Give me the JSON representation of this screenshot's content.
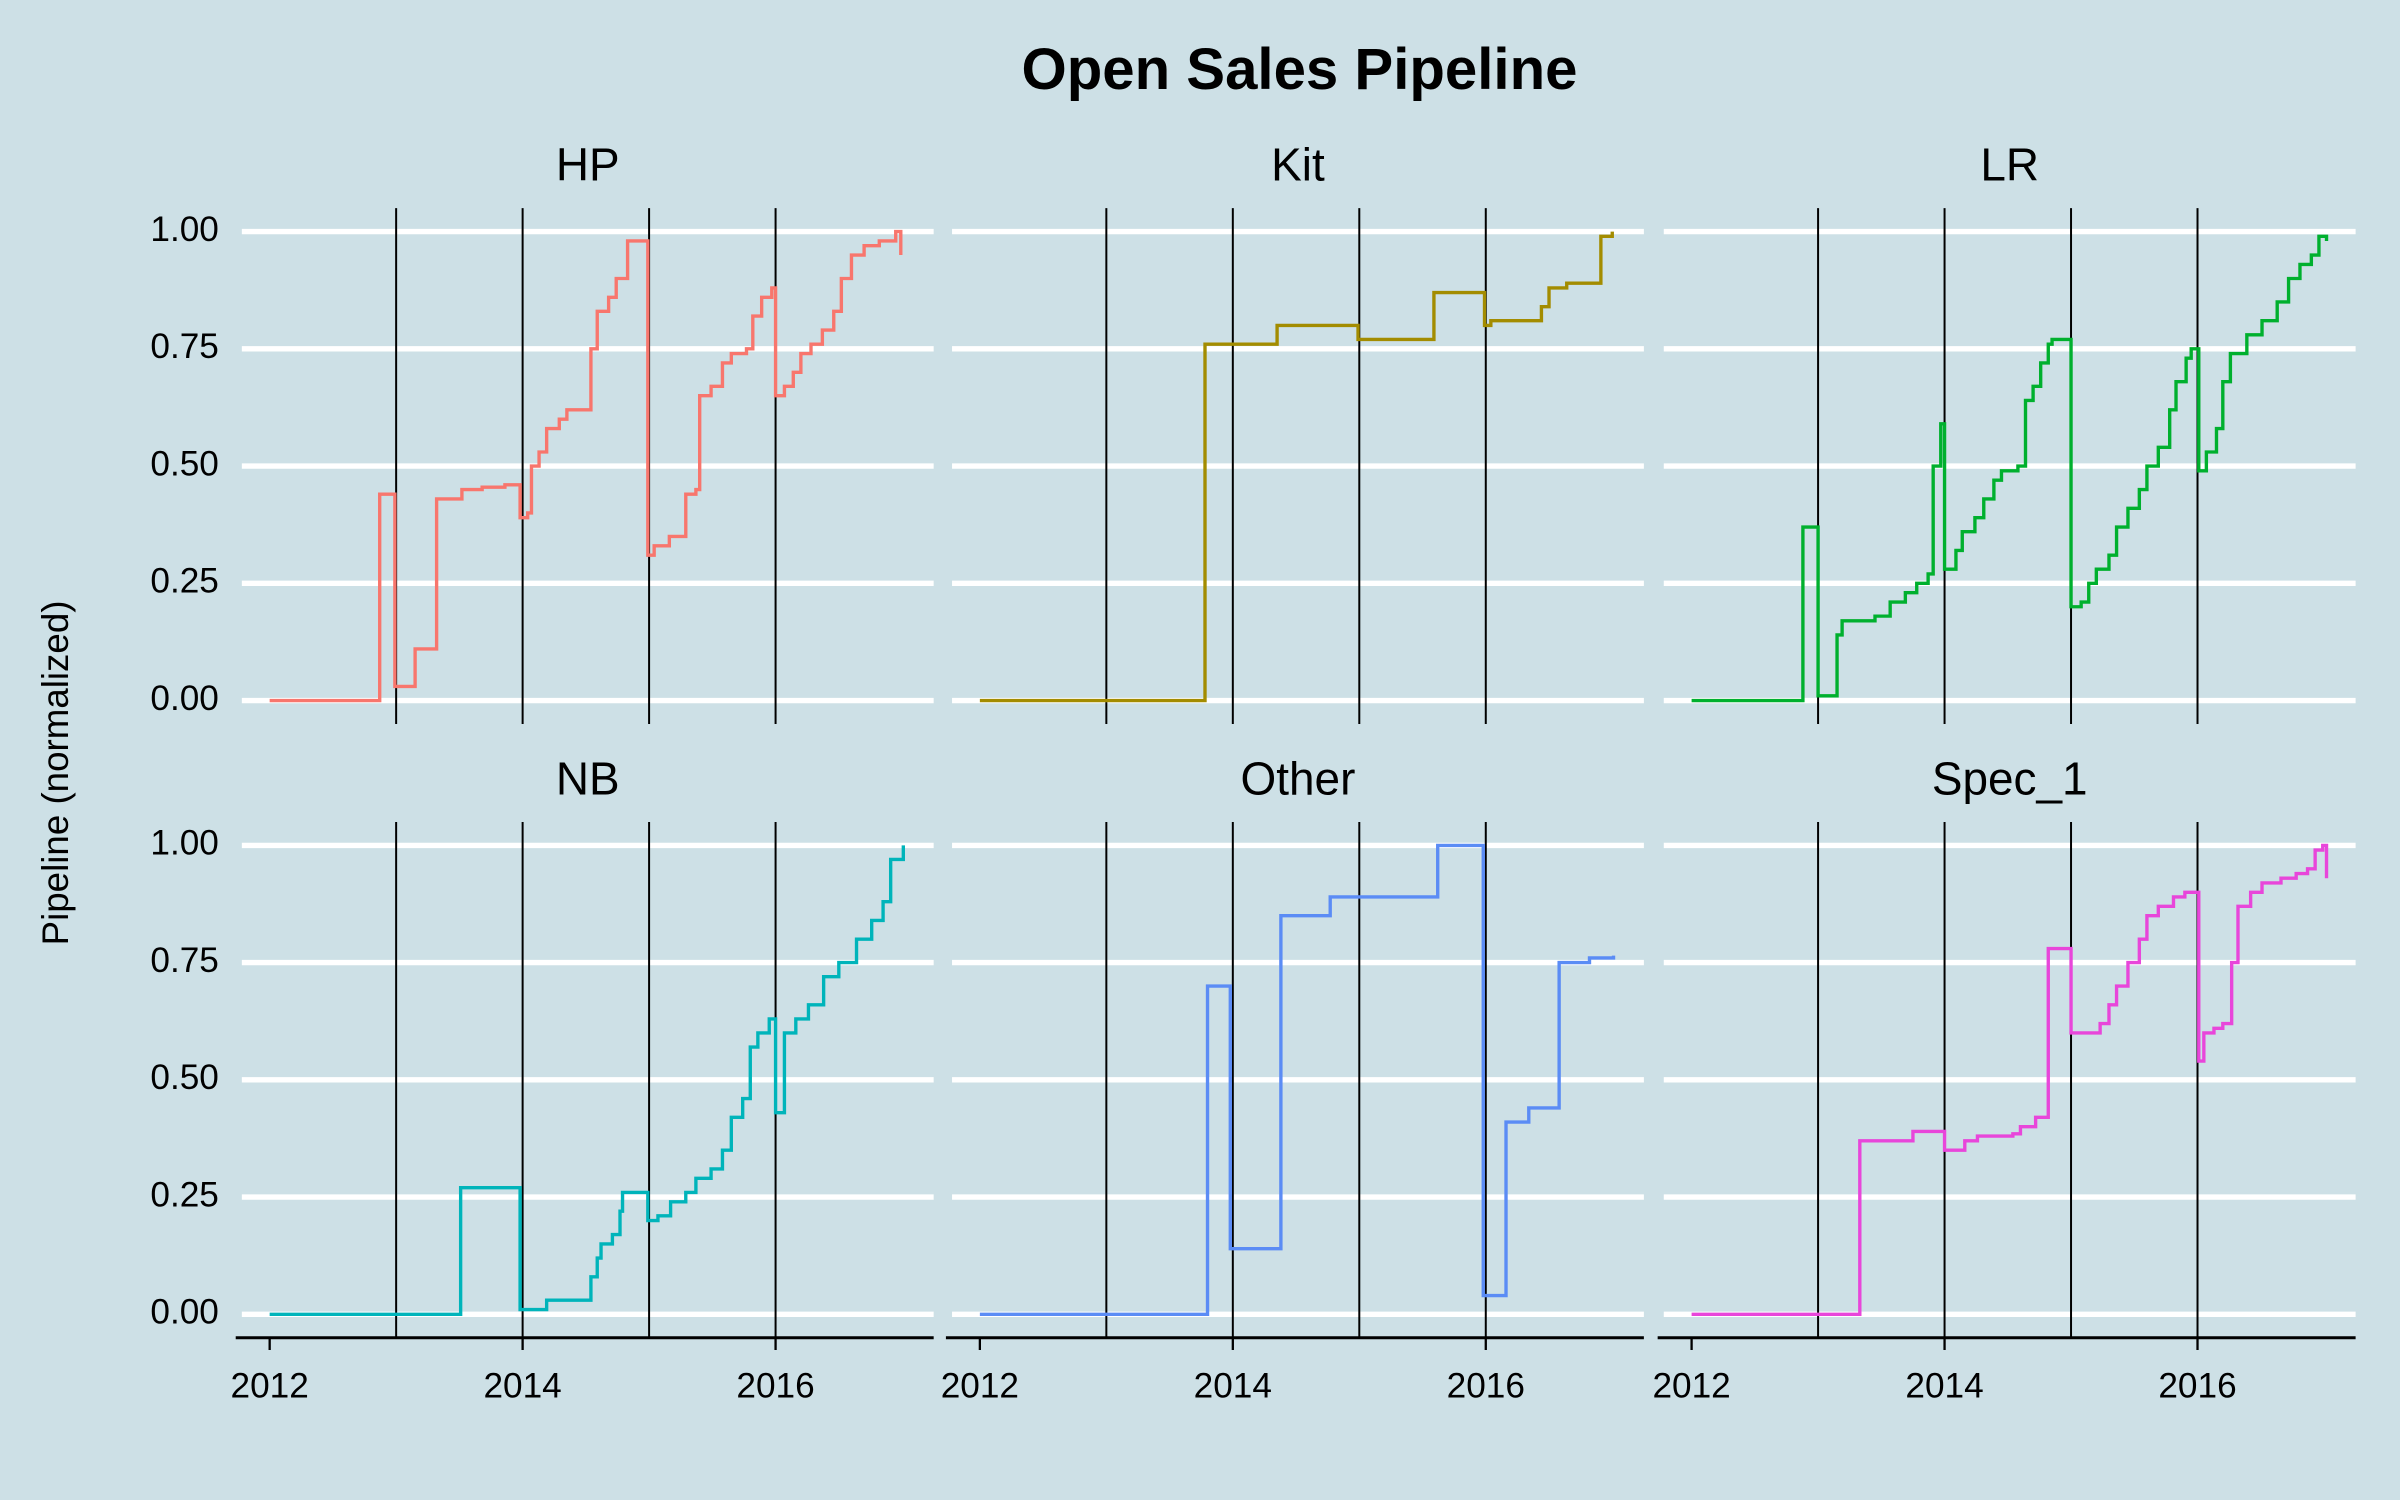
{
  "title": "Open Sales Pipeline",
  "y_label": "Pipeline (normalized)",
  "chart_data": [
    {
      "type": "line",
      "title": "HP",
      "color": "#F8766D",
      "xlim": [
        2011.78,
        2017.25
      ],
      "ylim": [
        -0.05,
        1.05
      ],
      "yticks": [
        {
          "value": 0,
          "label": "0.00"
        },
        {
          "value": 0.25,
          "label": "0.25"
        },
        {
          "value": 0.5,
          "label": "0.50"
        },
        {
          "value": 0.75,
          "label": "0.75"
        },
        {
          "value": 1,
          "label": "1.00"
        }
      ],
      "vlines": [
        2013,
        2014,
        2015,
        2016
      ],
      "x": [
        2012.0,
        2012.87,
        2012.99,
        2013.15,
        2013.32,
        2013.52,
        2013.68,
        2013.86,
        2013.98,
        2014.04,
        2014.07,
        2014.13,
        2014.19,
        2014.29,
        2014.35,
        2014.54,
        2014.59,
        2014.68,
        2014.74,
        2014.83,
        2014.99,
        2015.04,
        2015.16,
        2015.29,
        2015.37,
        2015.4,
        2015.49,
        2015.58,
        2015.65,
        2015.77,
        2015.82,
        2015.89,
        2015.97,
        2016.0,
        2016.07,
        2016.14,
        2016.2,
        2016.28,
        2016.37,
        2016.46,
        2016.52,
        2016.6,
        2016.7,
        2016.82,
        2016.95,
        2016.99
      ],
      "values": [
        0,
        0.44,
        0.03,
        0.11,
        0.43,
        0.45,
        0.455,
        0.46,
        0.39,
        0.4,
        0.5,
        0.53,
        0.58,
        0.6,
        0.62,
        0.75,
        0.83,
        0.86,
        0.9,
        0.98,
        0.31,
        0.33,
        0.35,
        0.44,
        0.45,
        0.65,
        0.67,
        0.72,
        0.74,
        0.75,
        0.82,
        0.86,
        0.88,
        0.65,
        0.67,
        0.7,
        0.74,
        0.76,
        0.79,
        0.83,
        0.9,
        0.95,
        0.97,
        0.98,
        1.0,
        0.95
      ]
    },
    {
      "type": "line",
      "title": "Kit",
      "color": "#A38C00",
      "xlim": [
        2011.78,
        2017.25
      ],
      "ylim": [
        -0.05,
        1.05
      ],
      "yticks": [
        0,
        0.25,
        0.5,
        0.75,
        1
      ],
      "vlines": [
        2013,
        2014,
        2015,
        2016
      ],
      "x": [
        2012.0,
        2013.78,
        2014.35,
        2014.99,
        2015.59,
        2015.99,
        2016.04,
        2016.44,
        2016.5,
        2016.64,
        2016.91,
        2017.0
      ],
      "values": [
        0,
        0.76,
        0.8,
        0.77,
        0.87,
        0.8,
        0.81,
        0.84,
        0.88,
        0.89,
        0.99,
        1.0
      ]
    },
    {
      "type": "line",
      "title": "LR",
      "color": "#00B02E",
      "xlim": [
        2011.78,
        2017.25
      ],
      "ylim": [
        -0.05,
        1.05
      ],
      "yticks": [
        0,
        0.25,
        0.5,
        0.75,
        1
      ],
      "vlines": [
        2013,
        2014,
        2015,
        2016
      ],
      "x": [
        2012.0,
        2012.88,
        2013.0,
        2013.15,
        2013.19,
        2013.45,
        2013.57,
        2013.69,
        2013.78,
        2013.87,
        2013.91,
        2013.97,
        2014.0,
        2014.09,
        2014.14,
        2014.24,
        2014.31,
        2014.39,
        2014.45,
        2014.58,
        2014.64,
        2014.7,
        2014.76,
        2014.82,
        2014.85,
        2015.0,
        2015.08,
        2015.14,
        2015.2,
        2015.3,
        2015.36,
        2015.45,
        2015.54,
        2015.6,
        2015.69,
        2015.78,
        2015.83,
        2015.91,
        2015.95,
        2016.01,
        2016.07,
        2016.15,
        2016.2,
        2016.26,
        2016.39,
        2016.51,
        2016.63,
        2016.72,
        2016.81,
        2016.9,
        2016.96,
        2017.02
      ],
      "values": [
        0,
        0.37,
        0.01,
        0.14,
        0.17,
        0.18,
        0.21,
        0.23,
        0.25,
        0.27,
        0.5,
        0.59,
        0.28,
        0.32,
        0.36,
        0.39,
        0.43,
        0.47,
        0.49,
        0.5,
        0.64,
        0.67,
        0.72,
        0.76,
        0.77,
        0.2,
        0.21,
        0.25,
        0.28,
        0.31,
        0.37,
        0.41,
        0.45,
        0.5,
        0.54,
        0.62,
        0.68,
        0.73,
        0.75,
        0.49,
        0.53,
        0.58,
        0.68,
        0.74,
        0.78,
        0.81,
        0.85,
        0.9,
        0.93,
        0.95,
        0.99,
        0.98
      ]
    },
    {
      "type": "line",
      "title": "NB",
      "color": "#00B4BA",
      "xlim": [
        2011.78,
        2017.25
      ],
      "ylim": [
        -0.05,
        1.05
      ],
      "yticks": [
        {
          "value": 0,
          "label": "0.00"
        },
        {
          "value": 0.25,
          "label": "0.25"
        },
        {
          "value": 0.5,
          "label": "0.50"
        },
        {
          "value": 0.75,
          "label": "0.75"
        },
        {
          "value": 1,
          "label": "1.00"
        }
      ],
      "xticks": [
        2012,
        2014,
        2016
      ],
      "vlines": [
        2013,
        2014,
        2015,
        2016
      ],
      "x": [
        2012.0,
        2013.51,
        2013.98,
        2014.19,
        2014.54,
        2014.59,
        2014.62,
        2014.71,
        2014.77,
        2014.79,
        2014.99,
        2015.07,
        2015.17,
        2015.29,
        2015.37,
        2015.49,
        2015.58,
        2015.65,
        2015.74,
        2015.8,
        2015.86,
        2015.95,
        2016.0,
        2016.07,
        2016.16,
        2016.26,
        2016.38,
        2016.5,
        2016.64,
        2016.76,
        2016.85,
        2016.91,
        2017.01
      ],
      "values": [
        0,
        0.27,
        0.01,
        0.03,
        0.08,
        0.12,
        0.15,
        0.17,
        0.22,
        0.26,
        0.2,
        0.21,
        0.24,
        0.26,
        0.29,
        0.31,
        0.35,
        0.42,
        0.46,
        0.57,
        0.6,
        0.63,
        0.43,
        0.6,
        0.63,
        0.66,
        0.72,
        0.75,
        0.8,
        0.84,
        0.88,
        0.97,
        1.0
      ]
    },
    {
      "type": "line",
      "title": "Other",
      "color": "#5B8CF5",
      "xlim": [
        2011.78,
        2017.25
      ],
      "ylim": [
        -0.05,
        1.05
      ],
      "yticks": [
        0,
        0.25,
        0.5,
        0.75,
        1
      ],
      "xticks": [
        2012,
        2014,
        2016
      ],
      "vlines": [
        2013,
        2014,
        2015,
        2016
      ],
      "x": [
        2012.0,
        2013.8,
        2013.98,
        2014.38,
        2014.77,
        2015.62,
        2015.98,
        2016.16,
        2016.34,
        2016.58,
        2016.82,
        2017.01
      ],
      "values": [
        0,
        0.7,
        0.14,
        0.85,
        0.89,
        1.0,
        0.04,
        0.41,
        0.44,
        0.75,
        0.76,
        0.765
      ]
    },
    {
      "type": "line",
      "title": "Spec_1",
      "color": "#E846DA",
      "xlim": [
        2011.78,
        2017.25
      ],
      "ylim": [
        -0.05,
        1.05
      ],
      "yticks": [
        0,
        0.25,
        0.5,
        0.75,
        1
      ],
      "xticks": [
        2012,
        2014,
        2016
      ],
      "vlines": [
        2013,
        2014,
        2015,
        2016
      ],
      "x": [
        2012.0,
        2013.33,
        2013.75,
        2014.0,
        2014.16,
        2014.26,
        2014.54,
        2014.6,
        2014.72,
        2014.82,
        2015.0,
        2015.23,
        2015.3,
        2015.36,
        2015.45,
        2015.54,
        2015.6,
        2015.69,
        2015.81,
        2015.9,
        2016.01,
        2016.05,
        2016.13,
        2016.2,
        2016.27,
        2016.32,
        2016.42,
        2016.51,
        2016.66,
        2016.78,
        2016.87,
        2016.93,
        2016.99,
        2017.02
      ],
      "values": [
        0,
        0.37,
        0.39,
        0.35,
        0.37,
        0.38,
        0.385,
        0.4,
        0.42,
        0.78,
        0.6,
        0.62,
        0.66,
        0.7,
        0.75,
        0.8,
        0.85,
        0.87,
        0.89,
        0.9,
        0.54,
        0.6,
        0.61,
        0.62,
        0.75,
        0.87,
        0.9,
        0.92,
        0.93,
        0.94,
        0.95,
        0.99,
        1.0,
        0.93
      ]
    }
  ]
}
